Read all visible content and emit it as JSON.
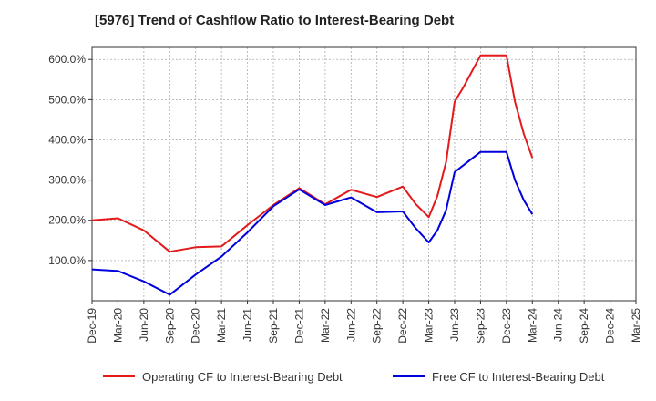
{
  "chart_data": {
    "type": "line",
    "title": "[5976]  Trend of Cashflow Ratio to Interest-Bearing Debt",
    "xlabel": "",
    "ylabel": "",
    "x_ticks": [
      "Dec-19",
      "Mar-20",
      "Jun-20",
      "Sep-20",
      "Dec-20",
      "Mar-21",
      "Jun-21",
      "Sep-21",
      "Dec-21",
      "Mar-22",
      "Jun-22",
      "Sep-22",
      "Dec-22",
      "Mar-23",
      "Jun-23",
      "Sep-23",
      "Dec-23",
      "Mar-24",
      "Jun-24",
      "Sep-24",
      "Dec-24",
      "Mar-25"
    ],
    "y_ticks": [
      100,
      200,
      300,
      400,
      500,
      600
    ],
    "y_tick_labels": [
      "100.0%",
      "200.0%",
      "300.0%",
      "400.0%",
      "500.0%",
      "600.0%"
    ],
    "ylim": [
      0,
      630
    ],
    "grid": true,
    "legend_position": "bottom",
    "series": [
      {
        "name": "Operating CF to Interest-Bearing Debt",
        "color": "#e31a1c",
        "points": [
          [
            0,
            200
          ],
          [
            1,
            205
          ],
          [
            2,
            175
          ],
          [
            3,
            122
          ],
          [
            4,
            133
          ],
          [
            5,
            135
          ],
          [
            6,
            188
          ],
          [
            7,
            238
          ],
          [
            8,
            280
          ],
          [
            9,
            240
          ],
          [
            10,
            276
          ],
          [
            11,
            258
          ],
          [
            12,
            284
          ],
          [
            12.5,
            240
          ],
          [
            13,
            208
          ],
          [
            13.33,
            260
          ],
          [
            13.67,
            345
          ],
          [
            14,
            495
          ],
          [
            14.33,
            530
          ],
          [
            15,
            610
          ],
          [
            16,
            610
          ],
          [
            16.33,
            495
          ],
          [
            16.67,
            415
          ],
          [
            17,
            355
          ]
        ]
      },
      {
        "name": "Free CF to Interest-Bearing Debt",
        "color": "#0000dd",
        "points": [
          [
            0,
            78
          ],
          [
            1,
            74
          ],
          [
            2,
            48
          ],
          [
            3,
            15
          ],
          [
            4,
            65
          ],
          [
            5,
            110
          ],
          [
            6,
            170
          ],
          [
            7,
            235
          ],
          [
            8,
            277
          ],
          [
            9,
            238
          ],
          [
            10,
            257
          ],
          [
            11,
            220
          ],
          [
            12,
            222
          ],
          [
            12.5,
            180
          ],
          [
            13,
            145
          ],
          [
            13.33,
            175
          ],
          [
            13.67,
            225
          ],
          [
            14,
            320
          ],
          [
            15,
            370
          ],
          [
            16,
            370
          ],
          [
            16.33,
            300
          ],
          [
            16.67,
            250
          ],
          [
            17,
            215
          ]
        ]
      }
    ]
  }
}
